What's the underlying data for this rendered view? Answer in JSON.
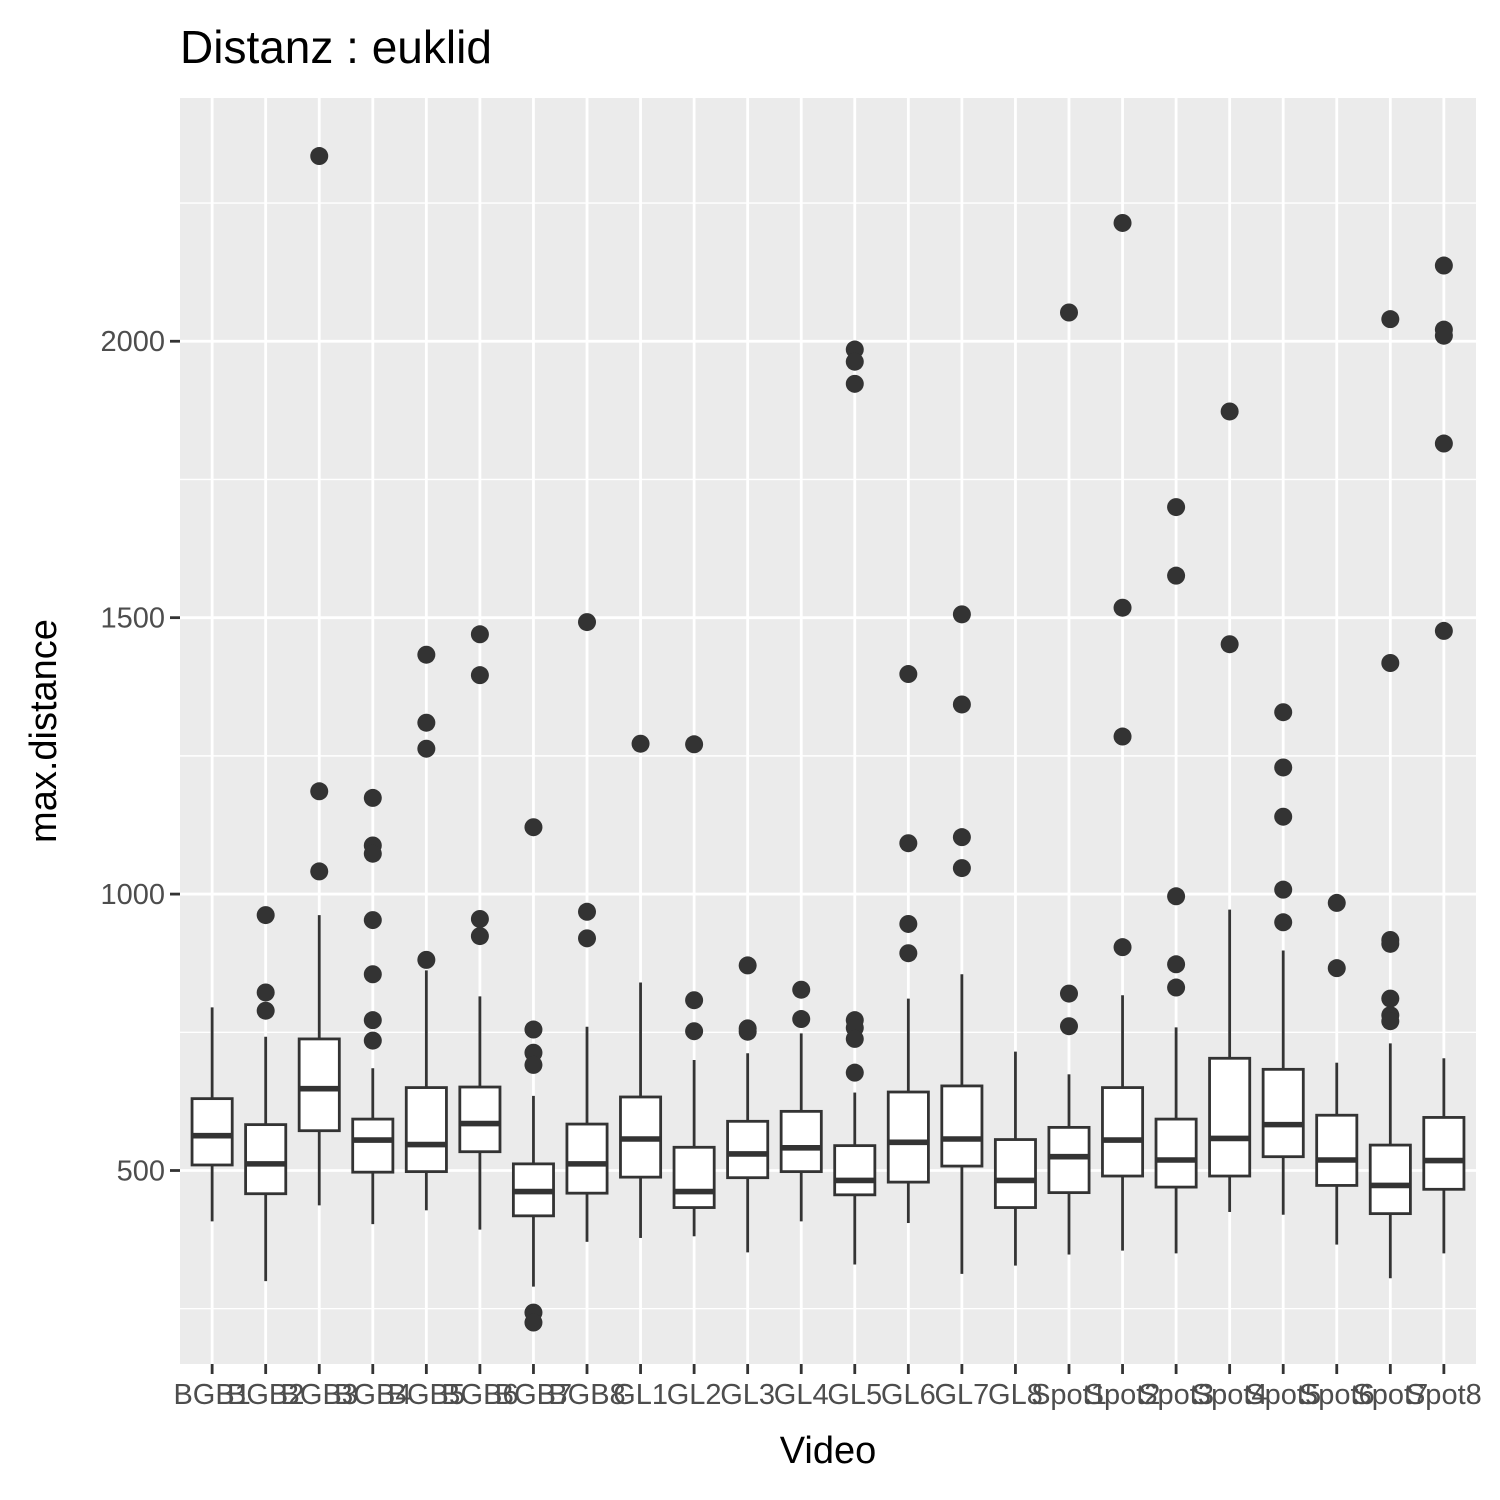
{
  "chart_data": {
    "type": "box",
    "title": "Distanz : euklid",
    "xlabel": "Video",
    "ylabel": "max.distance",
    "ylim": [
      150,
      2440
    ],
    "y_ticks": [
      500,
      1000,
      1500,
      2000
    ],
    "categories": [
      "BGB1",
      "BGB2",
      "BGB3",
      "BGB4",
      "BGB5",
      "BGB6",
      "BGB7",
      "BGB8",
      "GL1",
      "GL2",
      "GL3",
      "GL4",
      "GL5",
      "GL6",
      "GL7",
      "GL8",
      "Spot1",
      "Spot2",
      "Spot3",
      "Spot4",
      "Spot5",
      "Spot6",
      "Spot7",
      "Spot8"
    ],
    "boxes": [
      {
        "category": "BGB1",
        "whisker_low": 408,
        "q1": 510,
        "median": 563,
        "q3": 630,
        "whisker_high": 795,
        "outliers": []
      },
      {
        "category": "BGB2",
        "whisker_low": 300,
        "q1": 458,
        "median": 512,
        "q3": 583,
        "whisker_high": 742,
        "outliers": [
          962,
          822,
          789
        ]
      },
      {
        "category": "BGB3",
        "whisker_low": 437,
        "q1": 572,
        "median": 648,
        "q3": 738,
        "whisker_high": 962,
        "outliers": [
          2335,
          1186,
          1041
        ]
      },
      {
        "category": "BGB4",
        "whisker_low": 403,
        "q1": 497,
        "median": 555,
        "q3": 593,
        "whisker_high": 685,
        "outliers": [
          1174,
          1088,
          1073,
          953,
          855,
          772,
          735
        ]
      },
      {
        "category": "BGB5",
        "whisker_low": 428,
        "q1": 498,
        "median": 547,
        "q3": 650,
        "whisker_high": 862,
        "outliers": [
          1433,
          1310,
          1263,
          881
        ]
      },
      {
        "category": "BGB6",
        "whisker_low": 393,
        "q1": 534,
        "median": 585,
        "q3": 651,
        "whisker_high": 815,
        "outliers": [
          1470,
          1396,
          955,
          924
        ]
      },
      {
        "category": "BGB7",
        "whisker_low": 290,
        "q1": 418,
        "median": 462,
        "q3": 512,
        "whisker_high": 635,
        "outliers": [
          1121,
          755,
          713,
          691,
          243,
          225
        ]
      },
      {
        "category": "BGB8",
        "whisker_low": 371,
        "q1": 459,
        "median": 512,
        "q3": 584,
        "whisker_high": 760,
        "outliers": [
          1492,
          968,
          920
        ]
      },
      {
        "category": "GL1",
        "whisker_low": 378,
        "q1": 488,
        "median": 557,
        "q3": 633,
        "whisker_high": 840,
        "outliers": [
          1272
        ]
      },
      {
        "category": "GL2",
        "whisker_low": 381,
        "q1": 433,
        "median": 462,
        "q3": 542,
        "whisker_high": 700,
        "outliers": [
          1271,
          808,
          752
        ]
      },
      {
        "category": "GL3",
        "whisker_low": 352,
        "q1": 487,
        "median": 530,
        "q3": 589,
        "whisker_high": 712,
        "outliers": [
          871,
          757,
          751
        ]
      },
      {
        "category": "GL4",
        "whisker_low": 408,
        "q1": 498,
        "median": 541,
        "q3": 607,
        "whisker_high": 748,
        "outliers": [
          827,
          774
        ]
      },
      {
        "category": "GL5",
        "whisker_low": 330,
        "q1": 456,
        "median": 482,
        "q3": 545,
        "whisker_high": 641,
        "outliers": [
          1985,
          1963,
          1923,
          772,
          758,
          738,
          677
        ]
      },
      {
        "category": "GL6",
        "whisker_low": 405,
        "q1": 479,
        "median": 551,
        "q3": 642,
        "whisker_high": 811,
        "outliers": [
          1398,
          1092,
          946,
          893
        ]
      },
      {
        "category": "GL7",
        "whisker_low": 313,
        "q1": 508,
        "median": 557,
        "q3": 653,
        "whisker_high": 855,
        "outliers": [
          1506,
          1343,
          1103,
          1047
        ]
      },
      {
        "category": "GL8",
        "whisker_low": 328,
        "q1": 433,
        "median": 482,
        "q3": 556,
        "whisker_high": 715,
        "outliers": []
      },
      {
        "category": "Spot1",
        "whisker_low": 348,
        "q1": 460,
        "median": 525,
        "q3": 578,
        "whisker_high": 674,
        "outliers": [
          2052,
          820,
          761
        ]
      },
      {
        "category": "Spot2",
        "whisker_low": 355,
        "q1": 490,
        "median": 555,
        "q3": 650,
        "whisker_high": 817,
        "outliers": [
          2214,
          1518,
          1285,
          904
        ]
      },
      {
        "category": "Spot3",
        "whisker_low": 350,
        "q1": 470,
        "median": 519,
        "q3": 593,
        "whisker_high": 759,
        "outliers": [
          1700,
          1576,
          996,
          873,
          831
        ]
      },
      {
        "category": "Spot4",
        "whisker_low": 425,
        "q1": 490,
        "median": 558,
        "q3": 703,
        "whisker_high": 972,
        "outliers": [
          1873,
          1452
        ]
      },
      {
        "category": "Spot5",
        "whisker_low": 420,
        "q1": 525,
        "median": 583,
        "q3": 683,
        "whisker_high": 898,
        "outliers": [
          1329,
          1229,
          1140,
          1008,
          949
        ]
      },
      {
        "category": "Spot6",
        "whisker_low": 366,
        "q1": 473,
        "median": 519,
        "q3": 600,
        "whisker_high": 695,
        "outliers": [
          984,
          866
        ]
      },
      {
        "category": "Spot7",
        "whisker_low": 305,
        "q1": 422,
        "median": 473,
        "q3": 546,
        "whisker_high": 730,
        "outliers": [
          2040,
          1418,
          917,
          910,
          811,
          781,
          770
        ]
      },
      {
        "category": "Spot8",
        "whisker_low": 350,
        "q1": 466,
        "median": 518,
        "q3": 596,
        "whisker_high": 703,
        "outliers": [
          2137,
          2021,
          2010,
          1815,
          1476
        ]
      }
    ],
    "grid": true,
    "legend": "none"
  }
}
